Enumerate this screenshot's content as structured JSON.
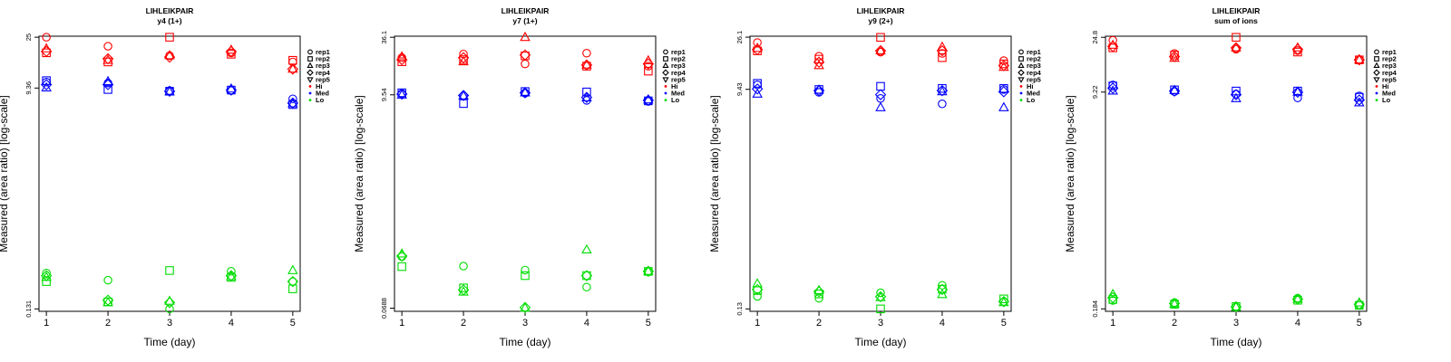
{
  "colors": {
    "Hi": "#ff0000",
    "Med": "#0000ff",
    "Lo": "#00dd00",
    "axis": "#000000"
  },
  "legend": {
    "position": "right",
    "shapes": [
      {
        "label": "rep1",
        "symbol": "circle"
      },
      {
        "label": "rep2",
        "symbol": "square"
      },
      {
        "label": "rep3",
        "symbol": "triangle-up"
      },
      {
        "label": "rep4",
        "symbol": "diamond"
      },
      {
        "label": "rep5",
        "symbol": "triangle-down"
      }
    ],
    "levels": [
      {
        "label": "Hi",
        "color": "#ff0000"
      },
      {
        "label": "Med",
        "color": "#0000ff"
      },
      {
        "label": "Lo",
        "color": "#00dd00"
      }
    ]
  },
  "chart_data": [
    {
      "type": "scatter",
      "title": "LIHLEIKPAIR",
      "subtitle": "y4 (1+)",
      "xlabel": "Time (day)",
      "ylabel": "Measured (area ratio) [log-scale]",
      "y_scale": "log",
      "ylim": [
        0.125,
        25.5
      ],
      "y_ticks": [
        {
          "value": 0.131,
          "label": "0.131"
        },
        {
          "value": 9.36,
          "label": "9.36"
        },
        {
          "value": 25,
          "label": "25"
        }
      ],
      "x_ticks": [
        1,
        2,
        3,
        4,
        5
      ],
      "grid": false,
      "series": [
        {
          "level": "Hi",
          "rep": "rep1",
          "symbol": "circle",
          "x": [
            1,
            2,
            3,
            4,
            5
          ],
          "y": [
            25.0,
            21.0,
            17.5,
            18.5,
            15.5
          ]
        },
        {
          "level": "Hi",
          "rep": "rep2",
          "symbol": "square",
          "x": [
            1,
            2,
            3,
            4,
            5
          ],
          "y": [
            18.5,
            15.5,
            25.0,
            18.0,
            16.0
          ]
        },
        {
          "level": "Hi",
          "rep": "rep3",
          "symbol": "triangle-up",
          "x": [
            1,
            2,
            3,
            4,
            5
          ],
          "y": [
            20.0,
            16.0,
            17.5,
            19.5,
            13.5
          ]
        },
        {
          "level": "Hi",
          "rep": "rep4",
          "symbol": "diamond",
          "x": [
            1,
            2,
            3,
            4,
            5
          ],
          "y": [
            19.0,
            16.5,
            17.0,
            19.0,
            13.5
          ]
        },
        {
          "level": "Med",
          "rep": "rep1",
          "symbol": "circle",
          "x": [
            1,
            2,
            3,
            4,
            5
          ],
          "y": [
            10.5,
            10.3,
            8.9,
            8.9,
            7.6
          ]
        },
        {
          "level": "Med",
          "rep": "rep2",
          "symbol": "square",
          "x": [
            1,
            2,
            3,
            4,
            5
          ],
          "y": [
            10.8,
            9.1,
            8.8,
            9.0,
            6.8
          ]
        },
        {
          "level": "Med",
          "rep": "rep3",
          "symbol": "triangle-up",
          "x": [
            1,
            2,
            3,
            4,
            5
          ],
          "y": [
            9.4,
            10.6,
            8.7,
            9.2,
            6.9
          ]
        },
        {
          "level": "Med",
          "rep": "rep4",
          "symbol": "diamond",
          "x": [
            1,
            2,
            3,
            4,
            5
          ],
          "y": [
            10.0,
            10.0,
            8.8,
            9.0,
            7.0
          ]
        },
        {
          "level": "Lo",
          "rep": "rep1",
          "symbol": "circle",
          "x": [
            1,
            2,
            3,
            4,
            5
          ],
          "y": [
            0.262,
            0.228,
            0.131,
            0.271,
            0.222
          ]
        },
        {
          "level": "Lo",
          "rep": "rep2",
          "symbol": "square",
          "x": [
            1,
            2,
            3,
            4,
            5
          ],
          "y": [
            0.222,
            0.15,
            0.275,
            0.241,
            0.193
          ]
        },
        {
          "level": "Lo",
          "rep": "rep3",
          "symbol": "triangle-up",
          "x": [
            1,
            2,
            3,
            4,
            5
          ],
          "y": [
            0.241,
            0.148,
            0.152,
            0.244,
            0.275
          ]
        },
        {
          "level": "Lo",
          "rep": "rep4",
          "symbol": "diamond",
          "x": [
            1,
            2,
            3,
            4,
            5
          ],
          "y": [
            0.249,
            0.155,
            0.148,
            0.249,
            0.222
          ]
        }
      ]
    },
    {
      "type": "scatter",
      "title": "LIHLEIKPAIR",
      "subtitle": "y7 (1+)",
      "xlabel": "Time (day)",
      "ylabel": "Measured (area ratio) [log-scale]",
      "y_scale": "log",
      "ylim": [
        0.064,
        37.0
      ],
      "y_ticks": [
        {
          "value": 0.0688,
          "label": "0.0688"
        },
        {
          "value": 9.54,
          "label": "9.54"
        },
        {
          "value": 36.1,
          "label": "36.1"
        }
      ],
      "x_ticks": [
        1,
        2,
        3,
        4,
        5
      ],
      "grid": false,
      "series": [
        {
          "level": "Hi",
          "rep": "rep1",
          "symbol": "circle",
          "x": [
            1,
            2,
            3,
            4,
            5
          ],
          "y": [
            22.5,
            24.5,
            19.5,
            25.0,
            18.5
          ]
        },
        {
          "level": "Hi",
          "rep": "rep2",
          "symbol": "square",
          "x": [
            1,
            2,
            3,
            4,
            5
          ],
          "y": [
            20.5,
            21.5,
            23.5,
            18.5,
            16.5
          ]
        },
        {
          "level": "Hi",
          "rep": "rep3",
          "symbol": "triangle-up",
          "x": [
            1,
            2,
            3,
            4,
            5
          ],
          "y": [
            23.0,
            20.5,
            36.0,
            19.0,
            21.0
          ]
        },
        {
          "level": "Hi",
          "rep": "rep4",
          "symbol": "diamond",
          "x": [
            1,
            2,
            3,
            4,
            5
          ],
          "y": [
            21.5,
            22.5,
            24.0,
            19.0,
            19.5
          ]
        },
        {
          "level": "Med",
          "rep": "rep1",
          "symbol": "circle",
          "x": [
            1,
            2,
            3,
            4,
            5
          ],
          "y": [
            9.8,
            9.3,
            9.9,
            8.4,
            8.2
          ]
        },
        {
          "level": "Med",
          "rep": "rep2",
          "symbol": "square",
          "x": [
            1,
            2,
            3,
            4,
            5
          ],
          "y": [
            10.0,
            7.8,
            10.3,
            10.2,
            8.3
          ]
        },
        {
          "level": "Med",
          "rep": "rep3",
          "symbol": "triangle-up",
          "x": [
            1,
            2,
            3,
            4,
            5
          ],
          "y": [
            9.5,
            9.3,
            10.0,
            8.9,
            8.5
          ]
        },
        {
          "level": "Med",
          "rep": "rep4",
          "symbol": "diamond",
          "x": [
            1,
            2,
            3,
            4,
            5
          ],
          "y": [
            9.7,
            9.4,
            10.0,
            9.0,
            8.4
          ]
        },
        {
          "level": "Lo",
          "rep": "rep1",
          "symbol": "circle",
          "x": [
            1,
            2,
            3,
            4,
            5
          ],
          "y": [
            0.226,
            0.182,
            0.166,
            0.112,
            0.161
          ]
        },
        {
          "level": "Lo",
          "rep": "rep2",
          "symbol": "square",
          "x": [
            1,
            2,
            3,
            4,
            5
          ],
          "y": [
            0.18,
            0.11,
            0.146,
            0.146,
            0.161
          ]
        },
        {
          "level": "Lo",
          "rep": "rep3",
          "symbol": "triangle-up",
          "x": [
            1,
            2,
            3,
            4,
            5
          ],
          "y": [
            0.241,
            0.1,
            0.069,
            0.265,
            0.161
          ]
        },
        {
          "level": "Lo",
          "rep": "rep4",
          "symbol": "diamond",
          "x": [
            1,
            2,
            3,
            4,
            5
          ],
          "y": [
            0.23,
            0.105,
            0.07,
            0.146,
            0.161
          ]
        }
      ]
    },
    {
      "type": "scatter",
      "title": "LIHLEIKPAIR",
      "subtitle": "y9 (2+)",
      "xlabel": "Time (day)",
      "ylabel": "Measured (area ratio) [log-scale]",
      "y_scale": "log",
      "ylim": [
        0.124,
        26.6
      ],
      "y_ticks": [
        {
          "value": 0.13,
          "label": "0.13"
        },
        {
          "value": 9.43,
          "label": "9.43"
        },
        {
          "value": 26.1,
          "label": "26.1"
        }
      ],
      "x_ticks": [
        1,
        2,
        3,
        4,
        5
      ],
      "grid": false,
      "series": [
        {
          "level": "Hi",
          "rep": "rep1",
          "symbol": "circle",
          "x": [
            1,
            2,
            3,
            4,
            5
          ],
          "y": [
            23.5,
            18.0,
            19.5,
            19.0,
            16.5
          ]
        },
        {
          "level": "Hi",
          "rep": "rep2",
          "symbol": "square",
          "x": [
            1,
            2,
            3,
            4,
            5
          ],
          "y": [
            20.0,
            17.0,
            26.0,
            17.5,
            15.5
          ]
        },
        {
          "level": "Hi",
          "rep": "rep3",
          "symbol": "triangle-up",
          "x": [
            1,
            2,
            3,
            4,
            5
          ],
          "y": [
            21.0,
            15.0,
            20.0,
            21.5,
            14.5
          ]
        },
        {
          "level": "Hi",
          "rep": "rep4",
          "symbol": "diamond",
          "x": [
            1,
            2,
            3,
            4,
            5
          ],
          "y": [
            20.5,
            16.0,
            20.0,
            20.0,
            15.0
          ]
        },
        {
          "level": "Med",
          "rep": "rep1",
          "symbol": "circle",
          "x": [
            1,
            2,
            3,
            4,
            5
          ],
          "y": [
            10.3,
            8.9,
            7.9,
            7.1,
            9.4
          ]
        },
        {
          "level": "Med",
          "rep": "rep2",
          "symbol": "square",
          "x": [
            1,
            2,
            3,
            4,
            5
          ],
          "y": [
            10.6,
            9.4,
            10.0,
            9.6,
            9.6
          ]
        },
        {
          "level": "Med",
          "rep": "rep3",
          "symbol": "triangle-up",
          "x": [
            1,
            2,
            3,
            4,
            5
          ],
          "y": [
            8.6,
            9.3,
            6.6,
            9.0,
            6.6
          ]
        },
        {
          "level": "Med",
          "rep": "rep4",
          "symbol": "diamond",
          "x": [
            1,
            2,
            3,
            4,
            5
          ],
          "y": [
            9.5,
            9.2,
            8.5,
            9.2,
            9.0
          ]
        },
        {
          "level": "Lo",
          "rep": "rep1",
          "symbol": "circle",
          "x": [
            1,
            2,
            3,
            4,
            5
          ],
          "y": [
            0.166,
            0.16,
            0.178,
            0.206,
            0.15
          ]
        },
        {
          "level": "Lo",
          "rep": "rep2",
          "symbol": "square",
          "x": [
            1,
            2,
            3,
            4,
            5
          ],
          "y": [
            0.186,
            0.174,
            0.13,
            0.191,
            0.158
          ]
        },
        {
          "level": "Lo",
          "rep": "rep3",
          "symbol": "triangle-up",
          "x": [
            1,
            2,
            3,
            4,
            5
          ],
          "y": [
            0.212,
            0.186,
            0.162,
            0.172,
            0.147
          ]
        },
        {
          "level": "Lo",
          "rep": "rep4",
          "symbol": "diamond",
          "x": [
            1,
            2,
            3,
            4,
            5
          ],
          "y": [
            0.19,
            0.182,
            0.165,
            0.19,
            0.15
          ]
        }
      ]
    },
    {
      "type": "scatter",
      "title": "LIHLEIKPAIR",
      "subtitle": "sum of ions",
      "xlabel": "Time (day)",
      "ylabel": "Measured (area ratio) [log-scale]",
      "y_scale": "log",
      "ylim": [
        0.176,
        25.3
      ],
      "y_ticks": [
        {
          "value": 0.184,
          "label": "0.184"
        },
        {
          "value": 9.22,
          "label": "9.22"
        },
        {
          "value": 24.8,
          "label": "24.8"
        }
      ],
      "x_ticks": [
        1,
        2,
        3,
        4,
        5
      ],
      "grid": false,
      "series": [
        {
          "level": "Hi",
          "rep": "rep1",
          "symbol": "circle",
          "x": [
            1,
            2,
            3,
            4,
            5
          ],
          "y": [
            23.5,
            18.5,
            20.0,
            19.5,
            16.5
          ]
        },
        {
          "level": "Hi",
          "rep": "rep2",
          "symbol": "square",
          "x": [
            1,
            2,
            3,
            4,
            5
          ],
          "y": [
            20.5,
            18.0,
            24.8,
            19.0,
            16.5
          ]
        },
        {
          "level": "Hi",
          "rep": "rep3",
          "symbol": "triangle-up",
          "x": [
            1,
            2,
            3,
            4,
            5
          ],
          "y": [
            21.5,
            17.0,
            20.5,
            20.5,
            16.5
          ]
        },
        {
          "level": "Hi",
          "rep": "rep4",
          "symbol": "diamond",
          "x": [
            1,
            2,
            3,
            4,
            5
          ],
          "y": [
            21.0,
            17.5,
            20.5,
            20.0,
            16.5
          ]
        },
        {
          "level": "Med",
          "rep": "rep1",
          "symbol": "circle",
          "x": [
            1,
            2,
            3,
            4,
            5
          ],
          "y": [
            10.5,
            9.3,
            8.9,
            8.3,
            8.6
          ]
        },
        {
          "level": "Med",
          "rep": "rep2",
          "symbol": "square",
          "x": [
            1,
            2,
            3,
            4,
            5
          ],
          "y": [
            10.3,
            9.6,
            9.4,
            9.4,
            8.4
          ]
        },
        {
          "level": "Med",
          "rep": "rep3",
          "symbol": "triangle-up",
          "x": [
            1,
            2,
            3,
            4,
            5
          ],
          "y": [
            9.4,
            9.5,
            8.2,
            9.2,
            7.6
          ]
        },
        {
          "level": "Med",
          "rep": "rep4",
          "symbol": "diamond",
          "x": [
            1,
            2,
            3,
            4,
            5
          ],
          "y": [
            9.9,
            9.4,
            8.8,
            9.2,
            8.0
          ]
        },
        {
          "level": "Lo",
          "rep": "rep1",
          "symbol": "circle",
          "x": [
            1,
            2,
            3,
            4,
            5
          ],
          "y": [
            0.214,
            0.206,
            0.19,
            0.223,
            0.196
          ]
        },
        {
          "level": "Lo",
          "rep": "rep2",
          "symbol": "square",
          "x": [
            1,
            2,
            3,
            4,
            5
          ],
          "y": [
            0.218,
            0.2,
            0.192,
            0.215,
            0.196
          ]
        },
        {
          "level": "Lo",
          "rep": "rep3",
          "symbol": "triangle-up",
          "x": [
            1,
            2,
            3,
            4,
            5
          ],
          "y": [
            0.239,
            0.201,
            0.19,
            0.219,
            0.205
          ]
        },
        {
          "level": "Lo",
          "rep": "rep4",
          "symbol": "diamond",
          "x": [
            1,
            2,
            3,
            4,
            5
          ],
          "y": [
            0.225,
            0.203,
            0.191,
            0.219,
            0.2
          ]
        }
      ]
    }
  ]
}
